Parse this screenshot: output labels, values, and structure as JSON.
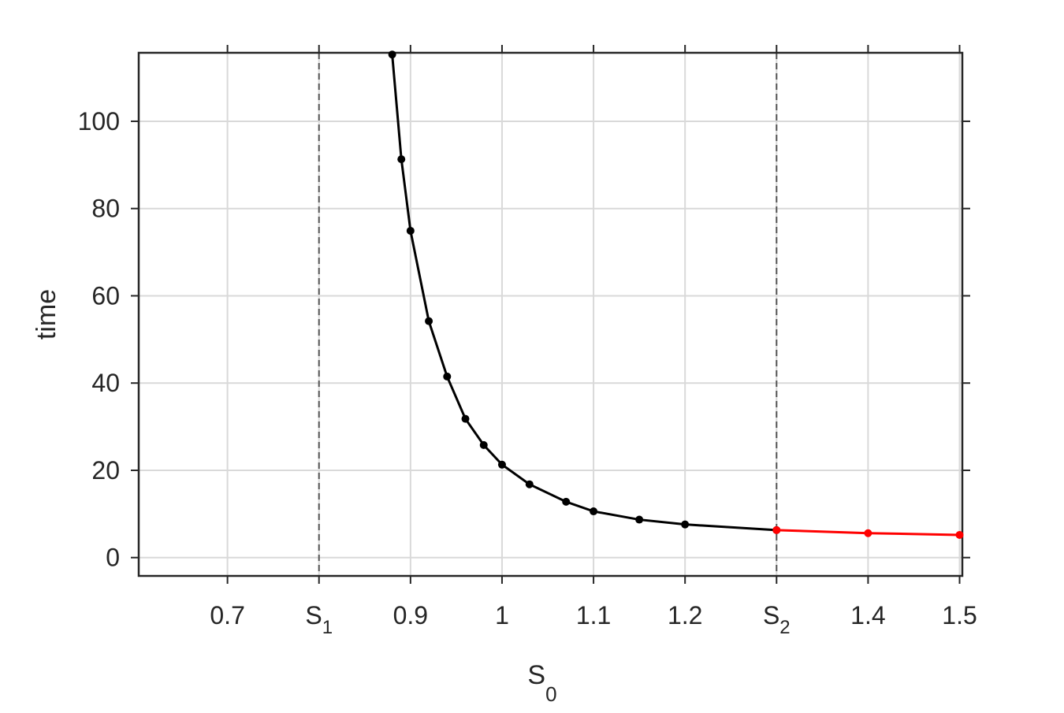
{
  "chart_data": {
    "type": "line",
    "x_label": {
      "text": "S",
      "subscript": "0"
    },
    "y_label": "time",
    "xlim": [
      0.603,
      1.503
    ],
    "ylim": [
      -4.2,
      115.7
    ],
    "xticks": [
      0.7,
      {
        "value": 0.8,
        "label": "S",
        "subscript": "1"
      },
      0.9,
      1,
      1.1,
      1.2,
      {
        "value": 1.3,
        "label": "S",
        "subscript": "2"
      },
      1.4,
      1.5
    ],
    "yticks": [
      0,
      20,
      40,
      60,
      80,
      100
    ],
    "vlines": [
      0.8,
      1.3
    ],
    "grid": true,
    "series": [
      {
        "color": "#000000",
        "x": [
          0.88,
          0.89,
          0.9,
          0.92,
          0.94,
          0.96,
          0.98,
          1.0,
          1.03,
          1.07,
          1.1,
          1.15,
          1.2,
          1.3
        ],
        "values": [
          115.3,
          91.3,
          74.9,
          54.2,
          41.5,
          31.8,
          25.8,
          21.3,
          16.8,
          12.8,
          10.6,
          8.7,
          7.6,
          6.3
        ]
      },
      {
        "color": "#ff0000",
        "x": [
          1.3,
          1.4,
          1.5
        ],
        "values": [
          6.3,
          5.6,
          5.2
        ]
      }
    ]
  }
}
